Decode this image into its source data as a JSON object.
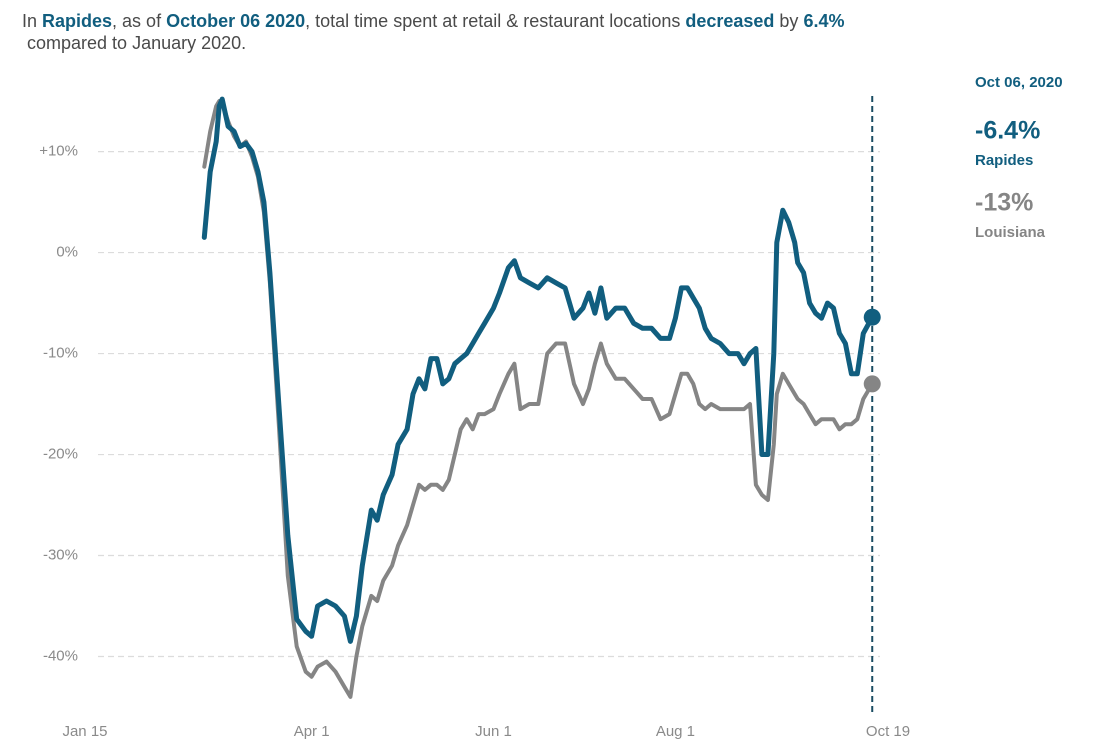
{
  "chart_data": {
    "type": "line",
    "title": [
      {
        "text": "In ",
        "bold": false
      },
      {
        "text": "Rapides",
        "bold": true
      },
      {
        "text": ", as of ",
        "bold": false
      },
      {
        "text": "October 06 2020",
        "bold": true
      },
      {
        "text": ", total time spent at retail & restaurant locations ",
        "bold": false
      },
      {
        "text": "decreased",
        "bold": true
      },
      {
        "text": " by ",
        "bold": false
      },
      {
        "text": "6.4%",
        "bold": true
      },
      {
        "text": " compared to January 2020.",
        "bold": false,
        "break_before": true
      }
    ],
    "annotation": {
      "date": "Oct 06, 2020"
    },
    "x": [
      "Feb 24",
      "Feb 26",
      "Feb 28",
      "Mar 1",
      "Mar 2",
      "Mar 4",
      "Mar 6",
      "Mar 8",
      "Mar 10",
      "Mar 12",
      "Mar 14",
      "Mar 16",
      "Mar 18",
      "Mar 21",
      "Mar 24",
      "Mar 27",
      "Mar 30",
      "Apr 1",
      "Apr 3",
      "Apr 6",
      "Apr 9",
      "Apr 12",
      "Apr 14",
      "Apr 16",
      "Apr 18",
      "Apr 21",
      "Apr 23",
      "Apr 25",
      "Apr 28",
      "Apr 30",
      "May 3",
      "May 5",
      "May 7",
      "May 9",
      "May 11",
      "May 13",
      "May 15",
      "May 17",
      "May 19",
      "May 21",
      "May 23",
      "May 25",
      "May 27",
      "May 29",
      "Jun 1",
      "Jun 3",
      "Jun 6",
      "Jun 8",
      "Jun 10",
      "Jun 13",
      "Jun 16",
      "Jun 19",
      "Jun 22",
      "Jun 25",
      "Jun 28",
      "Jul 1",
      "Jul 3",
      "Jul 5",
      "Jul 7",
      "Jul 9",
      "Jul 12",
      "Jul 15",
      "Jul 18",
      "Jul 21",
      "Jul 24",
      "Jul 27",
      "Jul 30",
      "Aug 1",
      "Aug 3",
      "Aug 5",
      "Aug 7",
      "Aug 9",
      "Aug 11",
      "Aug 13",
      "Aug 16",
      "Aug 19",
      "Aug 22",
      "Aug 24",
      "Aug 26",
      "Aug 28",
      "Aug 30",
      "Sep 1",
      "Sep 3",
      "Sep 4",
      "Sep 6",
      "Sep 8",
      "Sep 10",
      "Sep 11",
      "Sep 13",
      "Sep 15",
      "Sep 17",
      "Sep 19",
      "Sep 21",
      "Sep 23",
      "Sep 25",
      "Sep 27",
      "Sep 29",
      "Oct 1",
      "Oct 3",
      "Oct 6"
    ],
    "series": [
      {
        "name": "Louisiana",
        "color": "#858585",
        "end_label": "-13%",
        "values": [
          8.5,
          12,
          14.5,
          15,
          14.8,
          13,
          11.5,
          10.5,
          11,
          9.5,
          7.5,
          4,
          -3,
          -17,
          -32,
          -39,
          -41.5,
          -42,
          -41,
          -40.5,
          -41.5,
          -43,
          -44,
          -40,
          -37,
          -34,
          -34.5,
          -32.5,
          -31,
          -29,
          -27,
          -25,
          -23,
          -23.5,
          -23,
          -23,
          -23.5,
          -22.5,
          -20,
          -17.5,
          -16.5,
          -17.5,
          -16,
          -16,
          -15.5,
          -14,
          -12,
          -11,
          -15.5,
          -15,
          -15,
          -10,
          -9,
          -9,
          -13,
          -15,
          -13.5,
          -11,
          -9,
          -11,
          -12.5,
          -12.5,
          -13.5,
          -14.5,
          -14.5,
          -16.5,
          -16,
          -14,
          -12,
          -12,
          -13,
          -15,
          -15.5,
          -15,
          -15.5,
          -15.5,
          -15.5,
          -15.5,
          -15,
          -23,
          -24,
          -24.5,
          -19,
          -14,
          -12,
          -13,
          -14,
          -14.5,
          -15,
          -16,
          -17,
          -16.5,
          -16.5,
          -16.5,
          -17.5,
          -17,
          -17,
          -16.5,
          -14.5,
          -13
        ]
      },
      {
        "name": "Rapides",
        "color": "#115e7f",
        "end_label": "-6.4%",
        "values": [
          1.5,
          8,
          11,
          14.5,
          15.2,
          12.5,
          12,
          10.5,
          10.8,
          10,
          8,
          5,
          -2,
          -15,
          -28,
          -36.3,
          -37.5,
          -38,
          -35,
          -34.5,
          -35,
          -36,
          -38.5,
          -36,
          -31,
          -25.5,
          -26.5,
          -24,
          -22,
          -19,
          -17.5,
          -14,
          -12.5,
          -13.5,
          -10.5,
          -10.5,
          -13,
          -12.5,
          -11,
          -10.5,
          -10,
          -9,
          -8,
          -7,
          -5.5,
          -4,
          -1.5,
          -0.8,
          -2.5,
          -3,
          -3.5,
          -2.5,
          -3,
          -3.5,
          -6.5,
          -5.5,
          -4,
          -6,
          -3.5,
          -6.5,
          -5.5,
          -5.5,
          -7,
          -7.5,
          -7.5,
          -8.5,
          -8.5,
          -6.5,
          -3.5,
          -3.5,
          -4.5,
          -5.5,
          -7.5,
          -8.5,
          -9,
          -10,
          -10,
          -11,
          -10,
          -9.5,
          -20,
          -20,
          -10,
          1,
          4.2,
          3,
          1,
          -1,
          -2,
          -5,
          -6,
          -6.5,
          -5,
          -5.5,
          -8,
          -9,
          -12,
          -12,
          -8,
          -6.4
        ]
      }
    ],
    "xlim": [
      "Jan 15",
      "Oct 19"
    ],
    "xticks": [
      "Jan 15",
      "Apr 1",
      "Jun 1",
      "Aug 1",
      "Oct 19"
    ],
    "ylim": [
      -45,
      16
    ],
    "yticks": [
      {
        "value": 10,
        "label": "+10%"
      },
      {
        "value": 0,
        "label": "0%"
      },
      {
        "value": -10,
        "label": "-10%"
      },
      {
        "value": -20,
        "label": "-20%"
      },
      {
        "value": -30,
        "label": "-30%"
      },
      {
        "value": -40,
        "label": "-40%"
      }
    ],
    "grid": true
  }
}
